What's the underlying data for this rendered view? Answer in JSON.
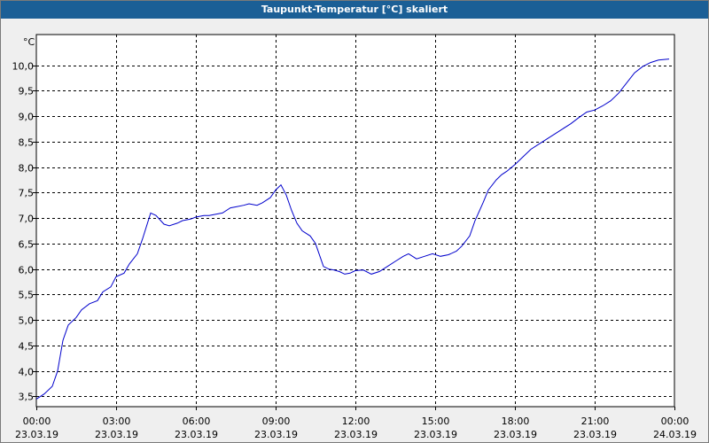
{
  "window": {
    "title": "Taupunkt-Temperatur [°C] skaliert"
  },
  "chart_data": {
    "type": "line",
    "title": "Taupunkt-Temperatur [°C] skaliert",
    "ylabel": "°C",
    "xlabel": "",
    "grid": true,
    "xlim_hours": [
      0,
      24
    ],
    "ylim": [
      3.3,
      10.6
    ],
    "line_color": "#0000cc",
    "yticks": [
      3.5,
      4.0,
      4.5,
      5.0,
      5.5,
      6.0,
      6.5,
      7.0,
      7.5,
      8.0,
      8.5,
      9.0,
      9.5,
      10.0
    ],
    "ytick_labels": [
      "3,5",
      "4,0",
      "4,5",
      "5,0",
      "5,5",
      "6,0",
      "6,5",
      "7,0",
      "7,5",
      "8,0",
      "8,5",
      "9,0",
      "9,5",
      "10,0"
    ],
    "xticks": [
      {
        "time": "00:00",
        "date": "23.03.19"
      },
      {
        "time": "03:00",
        "date": "23.03.19"
      },
      {
        "time": "06:00",
        "date": "23.03.19"
      },
      {
        "time": "09:00",
        "date": "23.03.19"
      },
      {
        "time": "12:00",
        "date": "23.03.19"
      },
      {
        "time": "15:00",
        "date": "23.03.19"
      },
      {
        "time": "18:00",
        "date": "23.03.19"
      },
      {
        "time": "21:00",
        "date": "23.03.19"
      },
      {
        "time": "00:00",
        "date": "24.03.19"
      }
    ],
    "series": [
      {
        "x": [
          0.0,
          0.3,
          0.6,
          0.8,
          1.0,
          1.2,
          1.5,
          1.7,
          2.0,
          2.3,
          2.5,
          2.8,
          3.0,
          3.3,
          3.5,
          3.8,
          4.0,
          4.3,
          4.5,
          4.8,
          5.0,
          5.3,
          5.5,
          5.8,
          6.0,
          6.3,
          6.5,
          6.8,
          7.0,
          7.3,
          7.5,
          7.8,
          8.0,
          8.3,
          8.5,
          8.8,
          9.0,
          9.2,
          9.4,
          9.6,
          9.8,
          10.0,
          10.3,
          10.5,
          10.8,
          11.0,
          11.2,
          11.4,
          11.6,
          11.8,
          12.0,
          12.3,
          12.6,
          12.9,
          13.2,
          13.5,
          13.8,
          14.0,
          14.3,
          14.6,
          14.9,
          15.2,
          15.5,
          15.8,
          16.0,
          16.3,
          16.5,
          16.8,
          17.0,
          17.3,
          17.5,
          17.7,
          18.0,
          18.3,
          18.6,
          18.9,
          19.2,
          19.5,
          19.8,
          20.1,
          20.4,
          20.7,
          21.0,
          21.3,
          21.6,
          21.9,
          22.2,
          22.5,
          22.8,
          23.1,
          23.4,
          23.8
        ],
        "y": [
          3.45,
          3.55,
          3.7,
          4.0,
          4.6,
          4.9,
          5.05,
          5.2,
          5.32,
          5.38,
          5.55,
          5.65,
          5.85,
          5.92,
          6.1,
          6.3,
          6.6,
          7.1,
          7.05,
          6.88,
          6.85,
          6.9,
          6.95,
          6.98,
          7.02,
          7.05,
          7.05,
          7.08,
          7.1,
          7.2,
          7.22,
          7.25,
          7.28,
          7.25,
          7.3,
          7.4,
          7.55,
          7.65,
          7.45,
          7.15,
          6.9,
          6.75,
          6.65,
          6.5,
          6.05,
          6.0,
          5.98,
          5.95,
          5.9,
          5.92,
          5.97,
          5.98,
          5.9,
          5.95,
          6.05,
          6.15,
          6.25,
          6.3,
          6.2,
          6.25,
          6.3,
          6.25,
          6.28,
          6.35,
          6.45,
          6.65,
          6.95,
          7.3,
          7.55,
          7.75,
          7.85,
          7.92,
          8.05,
          8.2,
          8.35,
          8.45,
          8.55,
          8.65,
          8.75,
          8.85,
          8.97,
          9.08,
          9.12,
          9.2,
          9.3,
          9.45,
          9.65,
          9.85,
          9.97,
          10.05,
          10.1,
          10.12
        ]
      }
    ]
  }
}
